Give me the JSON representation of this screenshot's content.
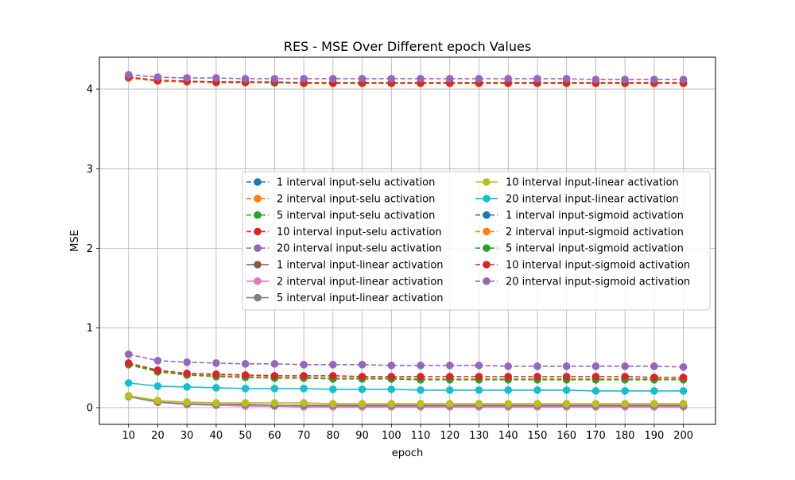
{
  "chart_data": {
    "type": "line",
    "title": "RES - MSE Over Different epoch Values",
    "xlabel": "epoch",
    "ylabel": "MSE",
    "xlim": [
      0,
      211
    ],
    "ylim": [
      -0.21,
      4.4
    ],
    "x": [
      10,
      20,
      30,
      40,
      50,
      60,
      70,
      80,
      90,
      100,
      110,
      120,
      130,
      140,
      150,
      160,
      170,
      180,
      190,
      200
    ],
    "x_ticks": [
      10,
      20,
      30,
      40,
      50,
      60,
      70,
      80,
      90,
      100,
      110,
      120,
      130,
      140,
      150,
      160,
      170,
      180,
      190,
      200
    ],
    "y_ticks": [
      0,
      1,
      2,
      3,
      4
    ],
    "grid": true,
    "legend_placement": "center-right",
    "series": [
      {
        "name": "1 interval input-selu activation",
        "color": "#1f77b4",
        "dash": true,
        "values": [
          0.55,
          0.46,
          0.42,
          0.4,
          0.39,
          0.38,
          0.38,
          0.37,
          0.37,
          0.37,
          0.36,
          0.36,
          0.36,
          0.36,
          0.36,
          0.36,
          0.36,
          0.36,
          0.36,
          0.36
        ]
      },
      {
        "name": "2 interval input-selu activation",
        "color": "#ff7f0e",
        "dash": true,
        "values": [
          0.55,
          0.46,
          0.42,
          0.4,
          0.39,
          0.38,
          0.38,
          0.37,
          0.37,
          0.37,
          0.36,
          0.36,
          0.36,
          0.36,
          0.36,
          0.36,
          0.36,
          0.36,
          0.36,
          0.36
        ]
      },
      {
        "name": "5 interval input-selu activation",
        "color": "#2ca02c",
        "dash": true,
        "values": [
          0.54,
          0.45,
          0.41,
          0.39,
          0.38,
          0.37,
          0.37,
          0.36,
          0.36,
          0.36,
          0.35,
          0.35,
          0.35,
          0.35,
          0.35,
          0.35,
          0.35,
          0.35,
          0.35,
          0.35
        ]
      },
      {
        "name": "10 interval input-selu activation",
        "color": "#d62728",
        "dash": true,
        "values": [
          0.56,
          0.47,
          0.43,
          0.42,
          0.41,
          0.4,
          0.4,
          0.4,
          0.39,
          0.39,
          0.39,
          0.39,
          0.39,
          0.39,
          0.39,
          0.39,
          0.39,
          0.39,
          0.38,
          0.38
        ]
      },
      {
        "name": "20 interval input-selu activation",
        "color": "#9467bd",
        "dash": true,
        "values": [
          0.67,
          0.59,
          0.57,
          0.56,
          0.55,
          0.55,
          0.54,
          0.54,
          0.54,
          0.53,
          0.53,
          0.53,
          0.53,
          0.52,
          0.52,
          0.52,
          0.52,
          0.52,
          0.52,
          0.51
        ]
      },
      {
        "name": "1 interval input-linear activation",
        "color": "#8c564b",
        "dash": false,
        "values": [
          0.14,
          0.07,
          0.04,
          0.03,
          0.03,
          0.02,
          0.02,
          0.02,
          0.02,
          0.02,
          0.02,
          0.02,
          0.02,
          0.02,
          0.02,
          0.02,
          0.02,
          0.02,
          0.02,
          0.02
        ]
      },
      {
        "name": "2 interval input-linear activation",
        "color": "#e377c2",
        "dash": false,
        "values": [
          0.14,
          0.07,
          0.04,
          0.03,
          0.02,
          0.02,
          0.01,
          0.01,
          0.01,
          0.01,
          0.01,
          0.01,
          0.01,
          0.01,
          0.01,
          0.01,
          0.01,
          0.01,
          0.01,
          0.01
        ]
      },
      {
        "name": "5 interval input-linear activation",
        "color": "#7f7f7f",
        "dash": false,
        "values": [
          0.14,
          0.07,
          0.05,
          0.04,
          0.04,
          0.03,
          0.03,
          0.03,
          0.03,
          0.03,
          0.03,
          0.03,
          0.03,
          0.03,
          0.03,
          0.03,
          0.03,
          0.03,
          0.03,
          0.03
        ]
      },
      {
        "name": "10 interval input-linear activation",
        "color": "#bcbd22",
        "dash": false,
        "values": [
          0.15,
          0.09,
          0.07,
          0.06,
          0.06,
          0.06,
          0.06,
          0.05,
          0.05,
          0.05,
          0.05,
          0.05,
          0.05,
          0.05,
          0.05,
          0.05,
          0.05,
          0.05,
          0.05,
          0.05
        ]
      },
      {
        "name": "20 interval input-linear activation",
        "color": "#17becf",
        "dash": false,
        "values": [
          0.31,
          0.27,
          0.26,
          0.25,
          0.24,
          0.24,
          0.24,
          0.23,
          0.23,
          0.23,
          0.22,
          0.22,
          0.22,
          0.22,
          0.22,
          0.22,
          0.21,
          0.21,
          0.21,
          0.21
        ]
      },
      {
        "name": "1 interval input-sigmoid activation",
        "color": "#1f77b4",
        "dash": true,
        "values": [
          4.14,
          4.1,
          4.09,
          4.08,
          4.08,
          4.08,
          4.07,
          4.07,
          4.07,
          4.07,
          4.07,
          4.07,
          4.07,
          4.07,
          4.07,
          4.07,
          4.07,
          4.07,
          4.07,
          4.07
        ]
      },
      {
        "name": "2 interval input-sigmoid activation",
        "color": "#ff7f0e",
        "dash": true,
        "values": [
          4.14,
          4.1,
          4.09,
          4.08,
          4.08,
          4.08,
          4.07,
          4.07,
          4.07,
          4.07,
          4.07,
          4.07,
          4.07,
          4.07,
          4.07,
          4.07,
          4.07,
          4.07,
          4.07,
          4.07
        ]
      },
      {
        "name": "5 interval input-sigmoid activation",
        "color": "#2ca02c",
        "dash": true,
        "values": [
          4.15,
          4.11,
          4.1,
          4.09,
          4.09,
          4.08,
          4.08,
          4.08,
          4.08,
          4.08,
          4.08,
          4.08,
          4.08,
          4.08,
          4.08,
          4.08,
          4.08,
          4.08,
          4.08,
          4.08
        ]
      },
      {
        "name": "10 interval input-sigmoid activation",
        "color": "#d62728",
        "dash": true,
        "values": [
          4.15,
          4.11,
          4.1,
          4.09,
          4.09,
          4.09,
          4.08,
          4.08,
          4.08,
          4.08,
          4.08,
          4.08,
          4.08,
          4.08,
          4.08,
          4.08,
          4.08,
          4.08,
          4.08,
          4.08
        ]
      },
      {
        "name": "20 interval input-sigmoid activation",
        "color": "#9467bd",
        "dash": true,
        "values": [
          4.18,
          4.15,
          4.14,
          4.14,
          4.13,
          4.13,
          4.13,
          4.13,
          4.13,
          4.13,
          4.13,
          4.13,
          4.13,
          4.13,
          4.13,
          4.13,
          4.12,
          4.12,
          4.12,
          4.12
        ]
      }
    ]
  }
}
